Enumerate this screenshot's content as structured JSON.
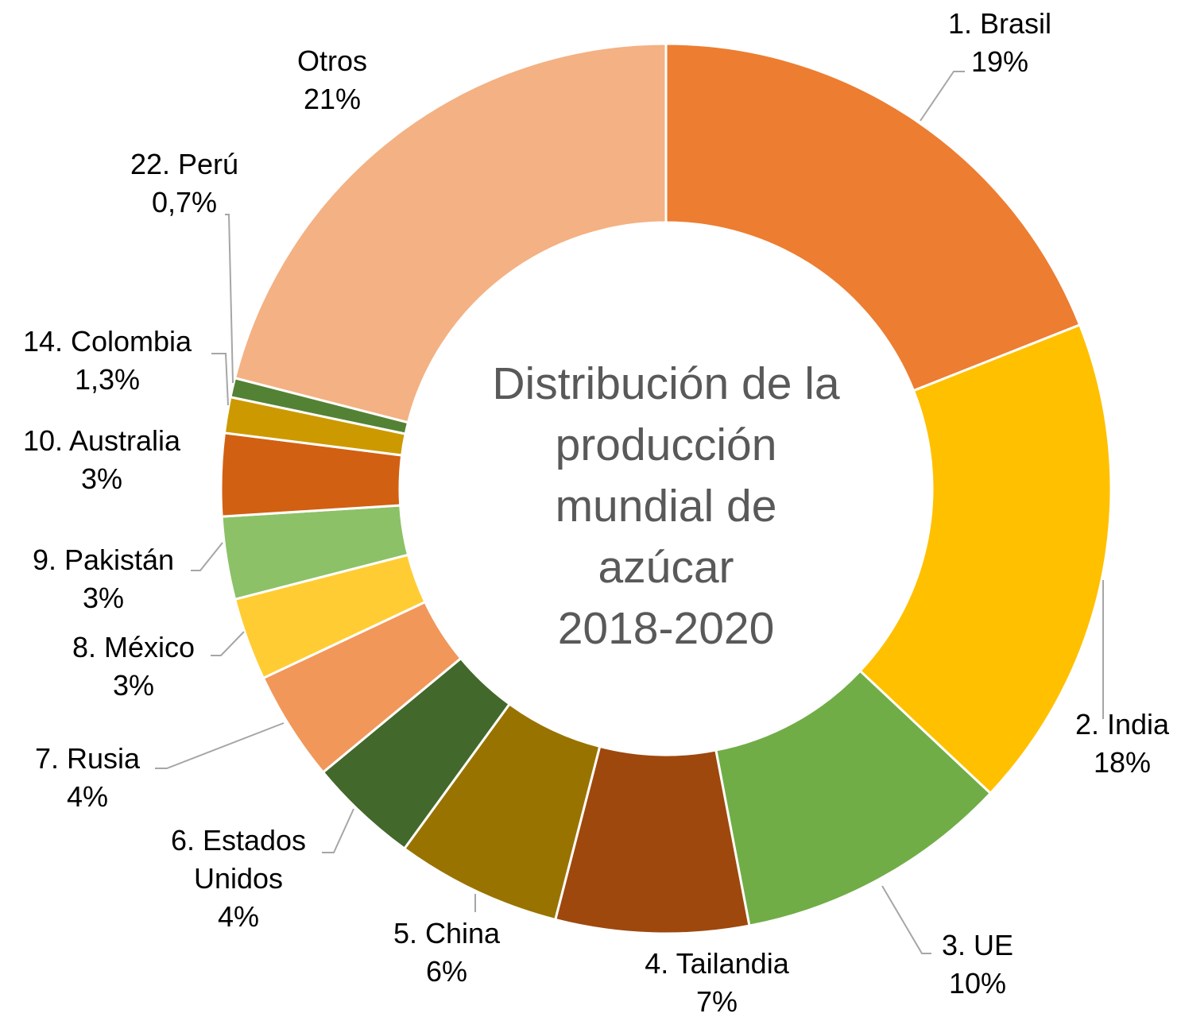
{
  "chart_data": {
    "type": "donut",
    "title": "Distribución de la\nproducción\nmundial de\nazúcar\n2018-2020",
    "categories": [
      "1. Brasil",
      "2. India",
      "3. UE",
      "4. Tailandia",
      "5. China",
      "6. Estados\nUnidos",
      "7. Rusia",
      "8. México",
      "9. Pakistán",
      "10. Australia",
      "14. Colombia",
      "22. Perú",
      "Otros"
    ],
    "values": [
      19,
      18,
      10,
      7,
      6,
      4,
      4,
      3,
      3,
      3,
      1.3,
      0.7,
      21
    ],
    "value_labels": [
      "19%",
      "18%",
      "10%",
      "7%",
      "6%",
      "4%",
      "4%",
      "3%",
      "3%",
      "3%",
      "1,3%",
      "0,7%",
      "21%"
    ],
    "colors": [
      "#ed7d31",
      "#ffc000",
      "#70ad47",
      "#9e480e",
      "#997300",
      "#43682b",
      "#f1975a",
      "#ffcd33",
      "#8cc168",
      "#d26012",
      "#cc9a00",
      "#548235",
      "#f4b183"
    ]
  }
}
